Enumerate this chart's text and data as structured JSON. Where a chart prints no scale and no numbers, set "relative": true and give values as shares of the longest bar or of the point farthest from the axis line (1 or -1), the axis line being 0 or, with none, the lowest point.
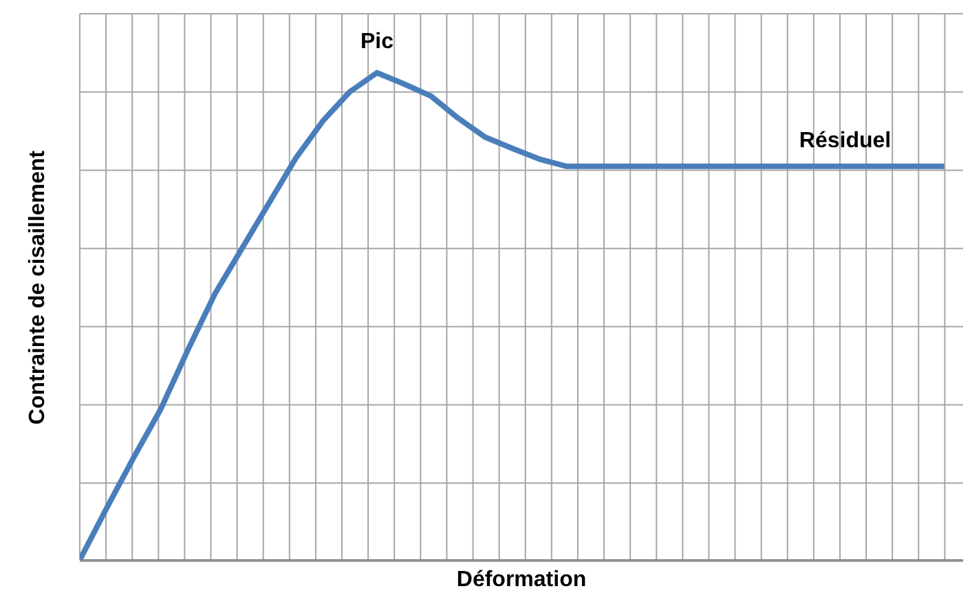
{
  "chart_data": {
    "type": "line",
    "relative": true,
    "xlabel": "Déformation",
    "ylabel": "Contrainte de cisaillement",
    "grid": true,
    "marker": "none",
    "line_style": "solid",
    "categories": [
      null,
      null,
      null,
      null,
      null,
      null,
      null,
      null,
      null,
      null,
      null,
      null,
      null,
      null,
      null,
      null,
      null,
      null,
      null,
      null,
      null,
      null,
      null,
      null,
      null,
      null,
      null,
      null,
      null,
      null,
      null,
      null,
      null
    ],
    "series": [
      {
        "color": "#4a7ebb",
        "values": [
          0,
          0.107,
          0.211,
          0.31,
          0.431,
          0.546,
          0.639,
          0.732,
          0.825,
          0.901,
          0.961,
          1,
          0.977,
          0.952,
          0.907,
          0.868,
          0.845,
          0.823,
          0.808,
          0.808,
          0.808,
          0.808,
          0.808,
          0.808,
          0.808,
          0.808,
          0.808,
          0.808,
          0.808,
          0.808,
          0.808,
          0.808,
          0.808
        ]
      }
    ],
    "annotations": [
      {
        "text": "Pic",
        "y": 1
      },
      {
        "text": "Résiduel",
        "y": 0.808
      }
    ]
  }
}
